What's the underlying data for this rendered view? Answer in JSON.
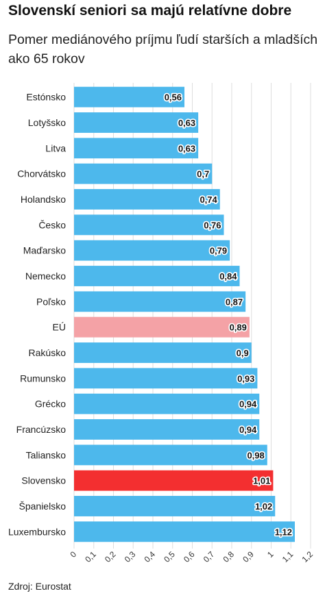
{
  "title": "Slovenskí seniori sa majú relatívne dobre",
  "subtitle": "Pomer mediánového príjmu ľudí starších a mladších ako 65 rokov",
  "source": "Zdroj: Eurostat",
  "colors": {
    "default": "#4db8ec",
    "eu": "#f4a2a6",
    "highlight": "#f32f30",
    "grid": "#dddddd"
  },
  "chart_data": {
    "type": "bar",
    "orientation": "horizontal",
    "title": "Slovenskí seniori sa majú relatívne dobre",
    "subtitle": "Pomer mediánového príjmu ľudí starších a mladších ako 65 rokov",
    "xlim": [
      0,
      1.2
    ],
    "ticks": [
      "0",
      "0,1",
      "0,2",
      "0,3",
      "0,4",
      "0,5",
      "0,6",
      "0,7",
      "0,8",
      "0,9",
      "1",
      "1,1",
      "1,2"
    ],
    "grid": true,
    "categories": [
      "Estónsko",
      "Lotyšsko",
      "Litva",
      "Chorvátsko",
      "Holandsko",
      "Česko",
      "Maďarsko",
      "Nemecko",
      "Poľsko",
      "EÚ",
      "Rakúsko",
      "Rumunsko",
      "Grécko",
      "Francúzsko",
      "Taliansko",
      "Slovensko",
      "Španielsko",
      "Luxembursko"
    ],
    "values": [
      0.56,
      0.63,
      0.63,
      0.7,
      0.74,
      0.76,
      0.79,
      0.84,
      0.87,
      0.89,
      0.9,
      0.93,
      0.94,
      0.94,
      0.98,
      1.01,
      1.02,
      1.12
    ],
    "labels": [
      "0,56",
      "0,63",
      "0,63",
      "0,7",
      "0,74",
      "0,76",
      "0,79",
      "0,84",
      "0,87",
      "0,89",
      "0,9",
      "0,93",
      "0,94",
      "0,94",
      "0,98",
      "1,01",
      "1,02",
      "1,12"
    ],
    "highlight": {
      "EÚ": "eu",
      "Slovensko": "highlight"
    }
  }
}
